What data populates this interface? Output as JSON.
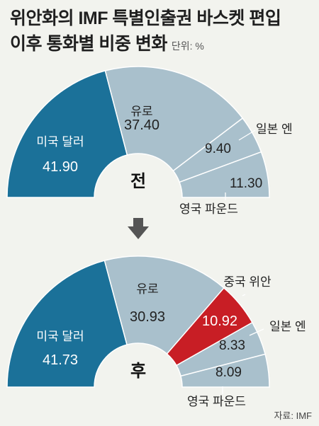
{
  "title_line1": "위안화의 IMF 특별인출권 바스켓 편입",
  "title_line2": "이후 통화별 비중 변화",
  "unit_label": "단위: %",
  "source": "자료: IMF",
  "colors": {
    "usd": "#1b7199",
    "other": "#a9c0cc",
    "cny": "#c81e25",
    "arrow": "#555555",
    "background": "#f2f3ee"
  },
  "chart_data": [
    {
      "type": "pie",
      "variant": "half-donut",
      "center_label": "전",
      "slices": [
        {
          "name": "미국 달러",
          "value": 41.9
        },
        {
          "name": "유로",
          "value": 37.4
        },
        {
          "name": "일본 엔",
          "value": 9.4
        },
        {
          "name": "영국 파운드",
          "value": 11.3
        }
      ]
    },
    {
      "type": "pie",
      "variant": "half-donut",
      "center_label": "후",
      "slices": [
        {
          "name": "미국 달러",
          "value": 41.73
        },
        {
          "name": "유로",
          "value": 30.93
        },
        {
          "name": "중국 위안",
          "value": 10.92
        },
        {
          "name": "일본 엔",
          "value": 8.33
        },
        {
          "name": "영국 파운드",
          "value": 8.09
        }
      ]
    }
  ]
}
